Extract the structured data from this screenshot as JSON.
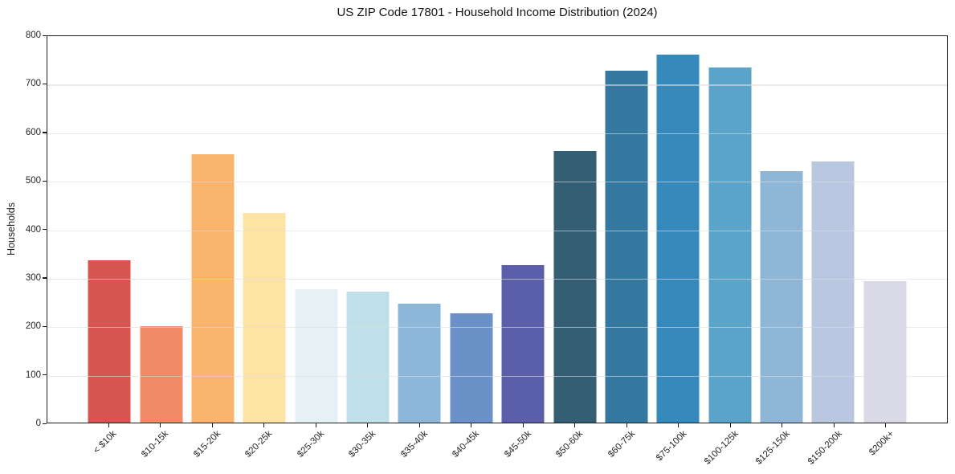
{
  "chart_data": {
    "type": "bar",
    "title": "US ZIP Code 17801 - Household Income Distribution (2024)",
    "xlabel": "",
    "ylabel": "Households",
    "ylim": [
      0,
      800
    ],
    "yticks": [
      0,
      100,
      200,
      300,
      400,
      500,
      600,
      700,
      800
    ],
    "grid": "horizontal-light-gridlines-over-bars",
    "legend": "none",
    "categories": [
      "< $10k",
      "$10-15k",
      "$15-20k",
      "$20-25k",
      "$25-30k",
      "$30-35k",
      "$35-40k",
      "$40-45k",
      "$45-50k",
      "$50-60k",
      "$60-75k",
      "$75-100k",
      "$100-125k",
      "$125-150k",
      "$150-200k",
      "$200k+"
    ],
    "values": [
      336,
      199,
      556,
      434,
      276,
      271,
      246,
      226,
      326,
      563,
      728,
      761,
      735,
      521,
      541,
      292
    ],
    "bar_colors": [
      "#d65551",
      "#f28a68",
      "#fab46e",
      "#fde4a4",
      "#e6f1f5",
      "#bfdfe9",
      "#8cb7d9",
      "#6b92c8",
      "#5b5fa9",
      "#345e74",
      "#34789f",
      "#3689bb",
      "#5ba4c9",
      "#8fb6d6",
      "#b9c8e0",
      "#d9d9e8"
    ],
    "spine_color": "#1b1b1b",
    "background_color": "#ffffff"
  }
}
